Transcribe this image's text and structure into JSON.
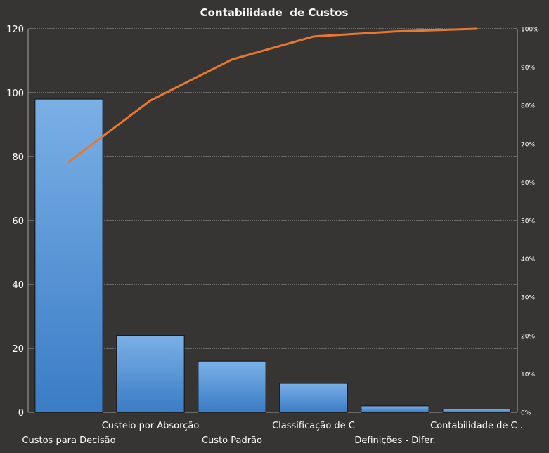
{
  "chart_data": {
    "type": "bar",
    "title": "Contabilidade  de Custos",
    "categories": [
      "Custos para Decisão",
      "Custeio por Absorção",
      "Custo Padrão",
      "Classificação de C",
      "Definições - Difer.",
      "Contabilidade de C ."
    ],
    "series": [
      {
        "type": "bar",
        "values": [
          98,
          24,
          16,
          9,
          2,
          1
        ]
      },
      {
        "type": "line",
        "axis": "right",
        "values": [
          65.3,
          81.3,
          92.0,
          98.0,
          99.3,
          100.0
        ]
      }
    ],
    "ylim": [
      0,
      120
    ],
    "y_ticks": [
      "0",
      "20",
      "40",
      "60",
      "80",
      "100",
      "120"
    ],
    "y2lim": [
      0,
      100
    ],
    "y2_ticks": [
      "0%",
      "10%",
      "20%",
      "30%",
      "40%",
      "50%",
      "60%",
      "70%",
      "80%",
      "90%",
      "100%"
    ],
    "grid": true,
    "colors": {
      "background": "#373534",
      "bar_top": "#7bb0e6",
      "bar_bottom": "#3a7cc6",
      "bar_border": "#111111",
      "line": "#e8782e",
      "grid": "#bdbdbd",
      "text": "#ffffff"
    }
  }
}
